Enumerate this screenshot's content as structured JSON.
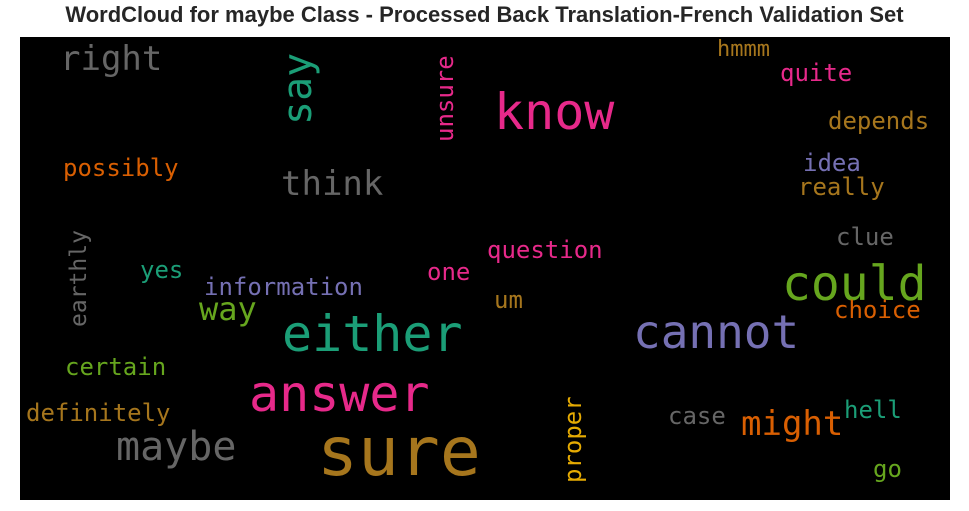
{
  "chart_data": {
    "type": "wordcloud",
    "title": "WordCloud for maybe Class - Processed Back Translation-French Validation Set",
    "background": "#000000",
    "words": [
      {
        "text": "sure",
        "color": "#a6761d"
      },
      {
        "text": "either",
        "color": "#1b9e77"
      },
      {
        "text": "know",
        "color": "#e7298a"
      },
      {
        "text": "answer",
        "color": "#e7298a"
      },
      {
        "text": "cannot",
        "color": "#7570b3"
      },
      {
        "text": "could",
        "color": "#66a61e"
      },
      {
        "text": "maybe",
        "color": "#666666"
      },
      {
        "text": "might",
        "color": "#d95f02"
      },
      {
        "text": "say",
        "color": "#1b9e77"
      },
      {
        "text": "think",
        "color": "#666666"
      },
      {
        "text": "right",
        "color": "#666666"
      },
      {
        "text": "way",
        "color": "#66a61e"
      },
      {
        "text": "possibly",
        "color": "#d95f02"
      },
      {
        "text": "certain",
        "color": "#66a61e"
      },
      {
        "text": "definitely",
        "color": "#a6761d"
      },
      {
        "text": "earthly",
        "color": "#666666"
      },
      {
        "text": "information",
        "color": "#7570b3"
      },
      {
        "text": "question",
        "color": "#e7298a"
      },
      {
        "text": "unsure",
        "color": "#e7298a"
      },
      {
        "text": "proper",
        "color": "#e6ab02"
      },
      {
        "text": "depends",
        "color": "#a6761d"
      },
      {
        "text": "hmmm",
        "color": "#a6761d"
      },
      {
        "text": "quite",
        "color": "#e7298a"
      },
      {
        "text": "idea",
        "color": "#7570b3"
      },
      {
        "text": "really",
        "color": "#a6761d"
      },
      {
        "text": "clue",
        "color": "#666666"
      },
      {
        "text": "choice",
        "color": "#d95f02"
      },
      {
        "text": "case",
        "color": "#666666"
      },
      {
        "text": "hell",
        "color": "#1b9e77"
      },
      {
        "text": "go",
        "color": "#66a61e"
      },
      {
        "text": "yes",
        "color": "#1b9e77"
      },
      {
        "text": "one",
        "color": "#e7298a"
      },
      {
        "text": "um",
        "color": "#a6761d"
      }
    ]
  }
}
